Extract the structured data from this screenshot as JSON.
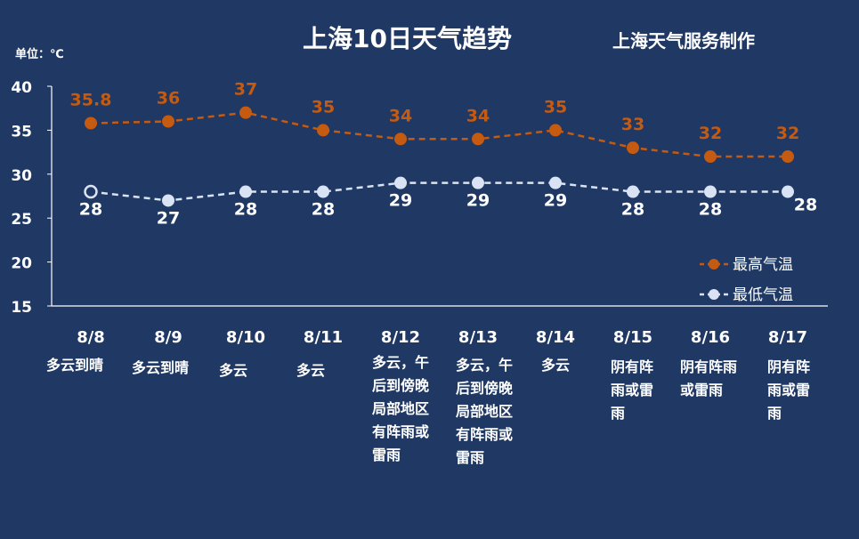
{
  "title": "上海10日天气趋势",
  "credit": "上海天气服务制作",
  "unit_label": "单位：℃",
  "colors": {
    "background": "#1f3864",
    "high": "#c55a11",
    "low": "#dae3f3",
    "axis": "#ffffff"
  },
  "chart_data": {
    "type": "line",
    "categories": [
      "8/8",
      "8/9",
      "8/10",
      "8/11",
      "8/12",
      "8/13",
      "8/14",
      "8/15",
      "8/16",
      "8/17"
    ],
    "series": [
      {
        "name": "最高气温",
        "values": [
          35.8,
          36,
          37,
          35,
          34,
          34,
          35,
          33,
          32,
          32
        ],
        "labels": [
          "35.8",
          "36",
          "37",
          "35",
          "34",
          "34",
          "35",
          "33",
          "32",
          "32"
        ],
        "color": "#c55a11"
      },
      {
        "name": "最低气温",
        "values": [
          28,
          27,
          28,
          28,
          29,
          29,
          29,
          28,
          28,
          28
        ],
        "labels": [
          "28",
          "27",
          "28",
          "28",
          "29",
          "29",
          "29",
          "28",
          "28",
          "28"
        ],
        "color": "#dae3f3"
      }
    ],
    "ylim": [
      15,
      40
    ],
    "yticks": [
      15,
      20,
      25,
      30,
      35,
      40
    ],
    "legend": "right",
    "grid": false
  },
  "weather": [
    "多云到晴",
    "多云到晴",
    "多云",
    "多云",
    "多云，午\n后到傍晚\n局部地区\n有阵雨或\n雷雨",
    "多云，午\n后到傍晚\n局部地区\n有阵雨或\n雷雨",
    "多云",
    "阴有阵\n雨或雷\n雨",
    "阴有阵雨\n或雷雨",
    "阴有阵\n雨或雷\n雨"
  ],
  "legend": {
    "high": "最高气温",
    "low": "最低气温"
  }
}
